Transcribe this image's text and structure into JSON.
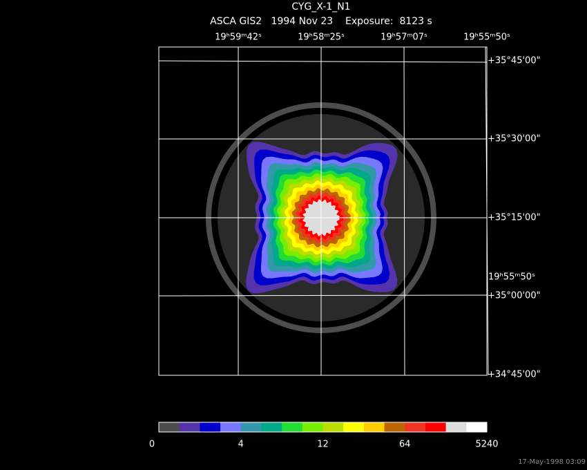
{
  "title": "CYG_X-1_N1",
  "subtitle": "ASCA GIS2   1994 Nov 23    Exposure:  8123 s",
  "ra_labels": [
    "19ʰ59ᵐ42ˢ",
    "19ʰ58ᵐ25ˢ",
    "19ʰ57ᵐ07ˢ",
    "19ʰ55ᵐ50ˢ"
  ],
  "ra_side_label": "19ʰ55ᵐ50ˢ",
  "dec_labels": [
    "+35°45'00\"",
    "+35°30'00\"",
    "+35°15'00\"",
    "+35°00'00\"",
    "+34°45'00\""
  ],
  "colorbar": {
    "colors": [
      "#4d4d4d",
      "#5533aa",
      "#0000cc",
      "#7777ff",
      "#3399aa",
      "#00aa88",
      "#22dd33",
      "#77ee00",
      "#bbdd00",
      "#ffff00",
      "#ffcc00",
      "#bb6600",
      "#ee3322",
      "#ff0000",
      "#dddddd",
      "#ffffff"
    ],
    "labels": [
      "0",
      "4",
      "12",
      "64",
      "5240"
    ]
  },
  "timestamp": "17-May-1998 03:09"
}
